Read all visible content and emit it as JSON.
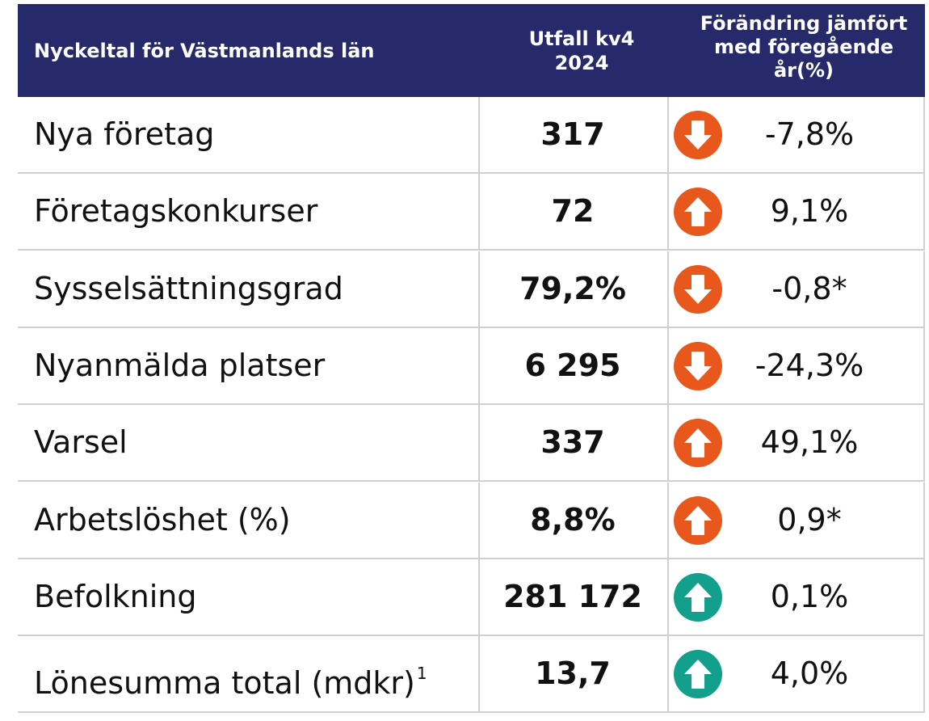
{
  "header": {
    "title": "Nyckeltal för Västmanlands län",
    "value_column": [
      "Utfall kv4",
      "2024"
    ],
    "change_column": [
      "Förändring jämfört",
      "med föregående",
      "år(%)"
    ]
  },
  "table": {
    "rows": [
      {
        "label": "Nya företag",
        "value": "317",
        "arrow": "down",
        "color": "#e8581c",
        "change": "-7,8%"
      },
      {
        "label": "Företagskonkurser",
        "value": "72",
        "arrow": "up",
        "color": "#e8581c",
        "change": "9,1%"
      },
      {
        "label": "Sysselsättningsgrad",
        "value": "79,2%",
        "arrow": "down",
        "color": "#e8581c",
        "change": "-0,8*"
      },
      {
        "label": "Nyanmälda platser",
        "value": "6 295",
        "arrow": "down",
        "color": "#e8581c",
        "change": "-24,3%"
      },
      {
        "label": "Varsel",
        "value": "337",
        "arrow": "up",
        "color": "#e8581c",
        "change": "49,1%"
      },
      {
        "label": "Arbetslöshet (%)",
        "value": "8,8%",
        "arrow": "up",
        "color": "#e8581c",
        "change": "0,9*"
      },
      {
        "label": "Befolkning",
        "value": "281 172",
        "arrow": "up",
        "color": "#12a08c",
        "change": "0,1%"
      },
      {
        "label": "Lönesumma total (mdkr)",
        "footnote": "1",
        "value": "13,7",
        "arrow": "up",
        "color": "#12a08c",
        "change": "4,0%"
      }
    ]
  }
}
